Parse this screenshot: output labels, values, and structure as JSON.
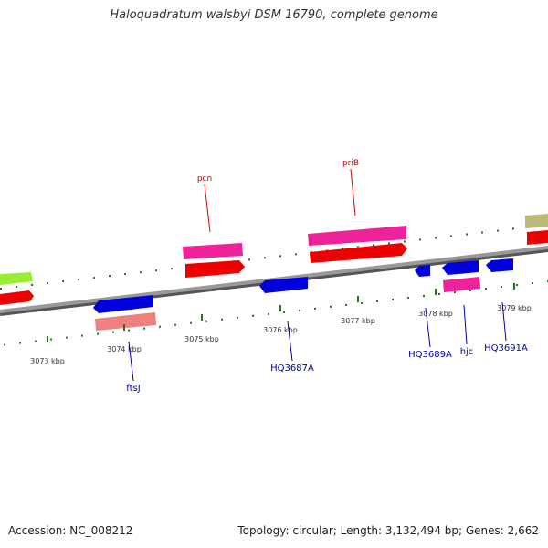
{
  "title": "Haloquadratum walsbyi DSM 16790, complete genome",
  "footer": {
    "accession": "Accession: NC_008212",
    "summary": "Topology: circular; Length: 3,132,494 bp; Genes: 2,662"
  },
  "colors": {
    "backbone": "#888888",
    "ticks": "#1a7a1a",
    "tick_label": "#333333",
    "gene_label_forward": "#cc0000",
    "gene_label_reverse": "#0000aa"
  },
  "ticks": [
    {
      "label": "3073 kbp"
    },
    {
      "label": "3074 kbp"
    },
    {
      "label": "3075 kbp"
    },
    {
      "label": "3076 kbp"
    },
    {
      "label": "3077 kbp"
    },
    {
      "label": "3078 kbp"
    },
    {
      "label": "3079 kbp"
    }
  ],
  "genes": [
    {
      "label": "pcn",
      "strand": "+",
      "color": "#ee2299"
    },
    {
      "label": "priB",
      "strand": "+",
      "color": "#ee2299"
    },
    {
      "label": "ftsJ",
      "strand": "-",
      "color": "#0000dd"
    },
    {
      "label": "HQ3687A",
      "strand": "-",
      "color": "#0000dd"
    },
    {
      "label": "HQ3689A",
      "strand": "-",
      "color": "#0000dd"
    },
    {
      "label": "hjc",
      "strand": "-",
      "color": "#ee2299"
    },
    {
      "label": "HQ3691A",
      "strand": "-",
      "color": "#0000dd"
    }
  ]
}
